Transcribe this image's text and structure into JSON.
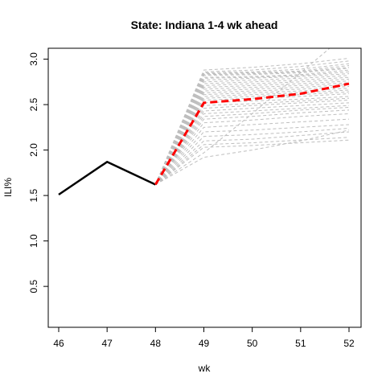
{
  "chart_data": {
    "type": "line",
    "title": "State: Indiana 1-4 wk ahead",
    "xlabel": "wk",
    "ylabel": "ILI%",
    "xlim": [
      46,
      52
    ],
    "ylim": [
      0.05,
      3.12
    ],
    "x_ticks": [
      "46",
      "47",
      "48",
      "49",
      "50",
      "51",
      "52"
    ],
    "y_ticks": [
      "0.5",
      "1.0",
      "1.5",
      "2.0",
      "2.5",
      "3.0"
    ],
    "grid": false,
    "legend": "none",
    "observed": {
      "x": [
        46,
        47,
        48
      ],
      "values": [
        1.51,
        1.87,
        1.62
      ],
      "color": "#000000"
    },
    "forecast_mean": {
      "x": [
        48,
        49,
        50,
        51,
        52
      ],
      "values": [
        1.62,
        2.52,
        2.56,
        2.62,
        2.73
      ],
      "color": "#ff0000"
    },
    "forecast_samples": {
      "x": [
        48,
        49,
        50,
        51,
        52
      ],
      "color": "#bebebe",
      "values": [
        [
          1.62,
          2.88,
          2.91,
          2.95,
          3.01
        ],
        [
          1.62,
          2.86,
          2.88,
          2.92,
          2.98
        ],
        [
          1.62,
          2.85,
          2.86,
          2.89,
          2.95
        ],
        [
          1.62,
          2.84,
          2.85,
          2.87,
          2.93
        ],
        [
          1.62,
          2.83,
          2.84,
          2.86,
          2.91
        ],
        [
          1.62,
          2.82,
          2.83,
          2.85,
          2.9
        ],
        [
          1.62,
          2.8,
          2.81,
          2.83,
          2.88
        ],
        [
          1.62,
          2.79,
          2.8,
          2.82,
          2.86
        ],
        [
          1.62,
          2.77,
          2.79,
          2.81,
          2.84
        ],
        [
          1.62,
          2.75,
          2.77,
          2.79,
          2.82
        ],
        [
          1.62,
          2.73,
          2.75,
          2.77,
          2.8
        ],
        [
          1.62,
          2.71,
          2.73,
          2.75,
          2.78
        ],
        [
          1.62,
          2.69,
          2.71,
          2.73,
          2.76
        ],
        [
          1.62,
          2.67,
          2.69,
          2.71,
          2.74
        ],
        [
          1.62,
          2.65,
          2.67,
          2.69,
          2.72
        ],
        [
          1.62,
          2.63,
          2.65,
          2.67,
          2.7
        ],
        [
          1.62,
          2.61,
          2.63,
          2.65,
          2.68
        ],
        [
          1.62,
          2.59,
          2.61,
          2.63,
          2.66
        ],
        [
          1.62,
          2.57,
          2.59,
          2.61,
          2.64
        ],
        [
          1.62,
          2.55,
          2.57,
          2.59,
          2.62
        ],
        [
          1.62,
          2.52,
          2.54,
          2.56,
          2.59
        ],
        [
          1.62,
          2.49,
          2.51,
          2.54,
          2.57
        ],
        [
          1.62,
          2.46,
          2.49,
          2.52,
          2.55
        ],
        [
          1.62,
          2.43,
          2.46,
          2.49,
          2.52
        ],
        [
          1.62,
          2.4,
          2.43,
          2.46,
          2.49
        ],
        [
          1.62,
          2.37,
          2.4,
          2.44,
          2.47
        ],
        [
          1.62,
          2.34,
          2.37,
          2.41,
          2.44
        ],
        [
          1.62,
          2.3,
          2.33,
          2.37,
          2.4
        ],
        [
          1.62,
          2.25,
          2.28,
          2.31,
          2.34
        ],
        [
          1.62,
          2.2,
          2.22,
          2.25,
          2.28
        ],
        [
          1.62,
          2.15,
          2.17,
          2.2,
          2.24
        ],
        [
          1.62,
          2.1,
          2.12,
          2.16,
          2.2
        ],
        [
          1.62,
          2.06,
          2.08,
          2.11,
          2.14
        ],
        [
          1.62,
          2.03,
          2.05,
          2.08,
          2.11
        ],
        [
          1.62,
          1.97,
          2.4,
          2.85,
          3.3
        ],
        [
          1.62,
          1.92,
          2.0,
          2.1,
          2.22
        ]
      ]
    }
  }
}
